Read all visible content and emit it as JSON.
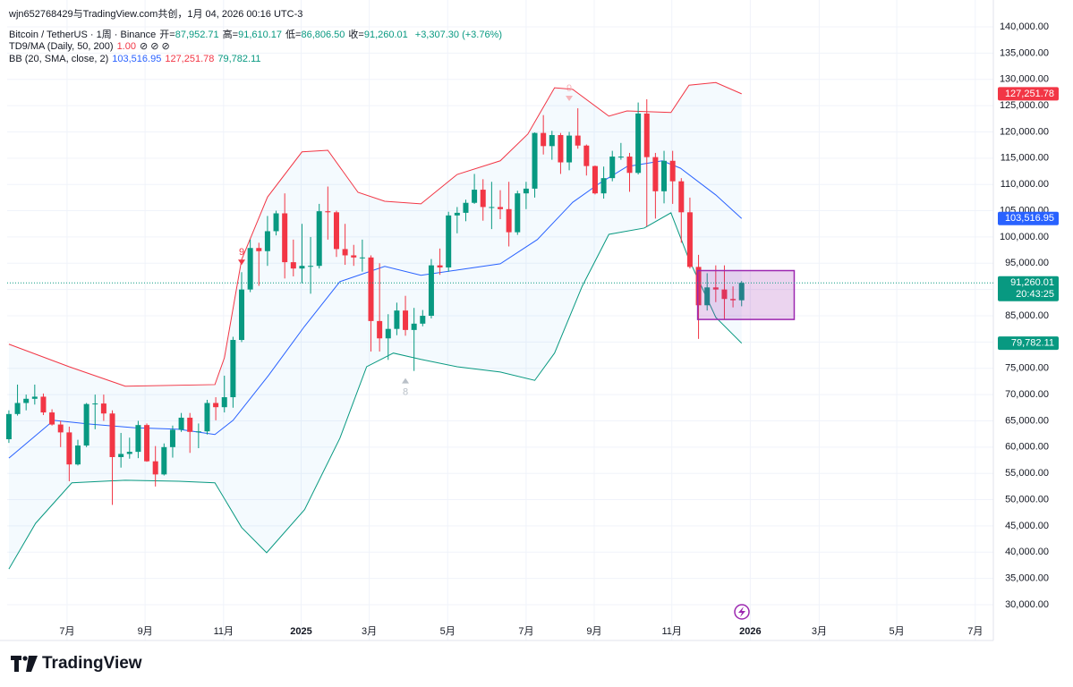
{
  "header": {
    "watermark": "wjn652768429与TradingView.com共创，1月 04, 2026 00:16 UTC-3",
    "symbol": "Bitcoin / TetherUS · 1周 · Binance",
    "ohlc": [
      {
        "label": "开=",
        "value": "87,952.71"
      },
      {
        "label": "高=",
        "value": "91,610.17"
      },
      {
        "label": "低=",
        "value": "86,806.50"
      },
      {
        "label": "收=",
        "value": "91,260.01"
      }
    ],
    "change": "+3,307.30 (+3.76%)",
    "indicators": [
      {
        "name": "TD9/MA (Daily, 50, 200)",
        "values": [
          {
            "text": "1.00",
            "color": "#f23645"
          },
          {
            "text": "⊘ ⊘ ⊘",
            "color": "#131722"
          }
        ]
      },
      {
        "name": "BB (20, SMA, close, 2)",
        "values": [
          {
            "text": "103,516.95",
            "color": "#2962ff"
          },
          {
            "text": "127,251.78",
            "color": "#f23645"
          },
          {
            "text": "79,782.11",
            "color": "#089981"
          }
        ]
      }
    ]
  },
  "footer": {
    "logo": "TradingView"
  },
  "chart_data": {
    "type": "candlestick",
    "up_color": "#089981",
    "down_color": "#f23645",
    "grid": true,
    "xlim": [
      -0.2,
      114.2
    ],
    "ylim": [
      23190,
      145110
    ],
    "xticks": [
      {
        "value": 6.75,
        "label": "7月"
      },
      {
        "value": 15.8,
        "label": "9月"
      },
      {
        "value": 24.9,
        "label": "11月"
      },
      {
        "value": 33.9,
        "label": "2025"
      },
      {
        "value": 41.8,
        "label": "3月"
      },
      {
        "value": 50.9,
        "label": "5月"
      },
      {
        "value": 60.0,
        "label": "7月"
      },
      {
        "value": 67.9,
        "label": "9月"
      },
      {
        "value": 76.9,
        "label": "11月"
      },
      {
        "value": 86.0,
        "label": "2026"
      },
      {
        "value": 94.0,
        "label": "3月"
      },
      {
        "value": 103.0,
        "label": "5月"
      },
      {
        "value": 112.1,
        "label": "7月"
      }
    ],
    "yticks": [
      {
        "value": 30000,
        "label": "30,000.00"
      },
      {
        "value": 35000,
        "label": "35,000.00"
      },
      {
        "value": 40000,
        "label": "40,000.00"
      },
      {
        "value": 45000,
        "label": "45,000.00"
      },
      {
        "value": 50000,
        "label": "50,000.00"
      },
      {
        "value": 55000,
        "label": "55,000.00"
      },
      {
        "value": 60000,
        "label": "60,000.00"
      },
      {
        "value": 65000,
        "label": "65,000.00"
      },
      {
        "value": 70000,
        "label": "70,000.00"
      },
      {
        "value": 75000,
        "label": "75,000.00"
      },
      {
        "value": 80000,
        "label": "80,000.00"
      },
      {
        "value": 85000,
        "label": "85,000.00"
      },
      {
        "value": 90000,
        "label": "90,000.00"
      },
      {
        "value": 95000,
        "label": "95,000.00"
      },
      {
        "value": 100000,
        "label": "100,000.00"
      },
      {
        "value": 105000,
        "label": "105,000.00"
      },
      {
        "value": 110000,
        "label": "110,000.00"
      },
      {
        "value": 115000,
        "label": "115,000.00"
      },
      {
        "value": 120000,
        "label": "120,000.00"
      },
      {
        "value": 125000,
        "label": "125,000.00"
      },
      {
        "value": 130000,
        "label": "130,000.00"
      },
      {
        "value": 135000,
        "label": "135,000.00"
      },
      {
        "value": 140000,
        "label": "140,000.00"
      }
    ],
    "x": [
      0,
      1,
      2,
      3,
      4,
      5,
      6,
      7,
      8,
      9,
      10,
      11,
      12,
      13,
      14,
      15,
      16,
      17,
      18,
      19,
      20,
      21,
      22,
      23,
      24,
      25,
      26,
      27,
      28,
      29,
      30,
      31,
      32,
      33,
      34,
      35,
      36,
      37,
      38,
      39,
      40,
      41,
      42,
      43,
      44,
      45,
      46,
      47,
      48,
      49,
      50,
      51,
      52,
      53,
      54,
      55,
      56,
      57,
      58,
      59,
      60,
      61,
      62,
      63,
      64,
      65,
      66,
      67,
      68,
      69,
      70,
      71,
      72,
      73,
      74,
      75,
      76,
      77,
      78,
      79,
      80,
      81,
      82,
      83,
      84,
      85
    ],
    "open": [
      61500,
      66300,
      68400,
      69200,
      69600,
      66600,
      64300,
      62800,
      56700,
      60300,
      68200,
      68300,
      66400,
      58100,
      58700,
      59100,
      64200,
      57300,
      54800,
      60000,
      63300,
      65600,
      62900,
      63000,
      68400,
      67600,
      69500,
      80400,
      90000,
      97900,
      97300,
      101100,
      104500,
      95200,
      94000,
      94500,
      94500,
      104900,
      104700,
      97700,
      96500,
      96100,
      96100,
      84000,
      80700,
      82500,
      86000,
      82300,
      83500,
      85000,
      94600,
      94200,
      104100,
      104600,
      106500,
      109000,
      105700,
      105700,
      105300,
      100900,
      108300,
      109200,
      119800,
      117300,
      119400,
      114200,
      119300,
      117400,
      113500,
      108300,
      111200,
      115300,
      115300,
      112200,
      123500,
      115200,
      108700,
      114500,
      110600,
      104700,
      94300,
      87000,
      90400,
      90000,
      88200,
      87952.71
    ],
    "high": [
      67000,
      71900,
      70000,
      71900,
      70200,
      67200,
      65000,
      63900,
      61400,
      68400,
      70000,
      70000,
      67000,
      62700,
      61800,
      65000,
      64500,
      60200,
      60700,
      64100,
      66500,
      66500,
      64500,
      69000,
      69500,
      73600,
      81000,
      93300,
      99500,
      98900,
      104000,
      105000,
      108300,
      99500,
      102500,
      100000,
      106300,
      109600,
      105000,
      102500,
      98500,
      99500,
      96500,
      95000,
      85300,
      87500,
      88800,
      86500,
      86100,
      95800,
      97800,
      104800,
      105700,
      107100,
      112000,
      111000,
      110500,
      108900,
      110500,
      108800,
      110500,
      119900,
      123200,
      120200,
      119800,
      120000,
      124500,
      117600,
      113600,
      113400,
      116400,
      117900,
      116000,
      125600,
      126200,
      116000,
      116400,
      116400,
      111200,
      107500,
      96600,
      93100,
      94600,
      94600,
      90600,
      91610.17
    ],
    "low": [
      60800,
      66000,
      67000,
      68100,
      66100,
      64100,
      60000,
      53500,
      56500,
      60000,
      63400,
      65000,
      49000,
      56100,
      57800,
      57900,
      57200,
      52500,
      54600,
      58000,
      62900,
      58900,
      59800,
      62400,
      65100,
      66600,
      67500,
      80000,
      89500,
      90700,
      94500,
      100300,
      92100,
      92500,
      91200,
      89200,
      94000,
      99500,
      96200,
      94700,
      94500,
      93400,
      78200,
      78200,
      76600,
      81300,
      81200,
      74500,
      83000,
      84500,
      92800,
      93400,
      100700,
      103000,
      106300,
      103100,
      101500,
      103400,
      98200,
      100400,
      105300,
      107500,
      115700,
      114700,
      112000,
      112700,
      116800,
      111700,
      108100,
      107300,
      110600,
      114700,
      108600,
      111900,
      102000,
      103500,
      106400,
      106300,
      98900,
      94000,
      80600,
      86000,
      87600,
      84400,
      86600,
      86806.5
    ],
    "close": [
      66300,
      68400,
      69200,
      69600,
      66600,
      64300,
      62800,
      56700,
      60300,
      68200,
      68300,
      66400,
      58100,
      58700,
      59100,
      64200,
      57300,
      54800,
      60000,
      63300,
      65600,
      62900,
      63000,
      68400,
      67600,
      69500,
      80400,
      90000,
      97900,
      97300,
      101100,
      104500,
      95200,
      94000,
      94500,
      94500,
      104900,
      104700,
      97700,
      96500,
      96100,
      96100,
      84000,
      80700,
      82500,
      86000,
      82300,
      83500,
      85000,
      94600,
      94200,
      104100,
      104600,
      106500,
      109000,
      105700,
      105700,
      105300,
      100900,
      108300,
      109200,
      119800,
      117300,
      119400,
      114200,
      119300,
      117400,
      113500,
      108300,
      111200,
      115300,
      115300,
      112200,
      123500,
      115200,
      108700,
      114500,
      110600,
      104700,
      94300,
      87000,
      90400,
      90000,
      88200,
      87952.71,
      91260.01
    ],
    "bands": [
      {
        "name": "upper",
        "color": "#f23645",
        "x": [
          0,
          7,
          13.5,
          23.9,
          25,
          27,
          30,
          34,
          37,
          40.5,
          43.6,
          47.8,
          52,
          57,
          60.2,
          63.3,
          65.4,
          69.6,
          71.7,
          76.8,
          78.9,
          82,
          85
        ],
        "values": [
          79600,
          75300,
          71600,
          71900,
          77000,
          95700,
          107600,
          116200,
          116500,
          108500,
          106800,
          106300,
          111900,
          114500,
          119600,
          128400,
          128100,
          123000,
          124000,
          123700,
          128900,
          129400,
          127251.78
        ]
      },
      {
        "name": "basis",
        "color": "#2962ff",
        "x": [
          0,
          5.2,
          9.3,
          14.5,
          19.7,
          23.9,
          26,
          30.1,
          34.3,
          38.4,
          43.6,
          47.8,
          52,
          57,
          61.3,
          65.4,
          68.5,
          71.7,
          75.8,
          77.9,
          82,
          85
        ],
        "values": [
          57900,
          65100,
          64400,
          63700,
          63400,
          62400,
          65100,
          73600,
          83000,
          91500,
          94400,
          92700,
          93700,
          94900,
          99500,
          106600,
          110200,
          113400,
          114500,
          113100,
          108000,
          103516.95
        ]
      },
      {
        "name": "lower",
        "color": "#089981",
        "x": [
          0,
          3.1,
          7.3,
          13.5,
          19.7,
          23.9,
          27,
          29.9,
          34.3,
          38.4,
          41.5,
          44.6,
          47.8,
          52,
          57,
          61,
          63.3,
          66.5,
          69.6,
          73.7,
          76.8,
          78.9,
          82,
          85
        ],
        "values": [
          36800,
          45500,
          53200,
          53700,
          53500,
          53200,
          44700,
          39900,
          48100,
          61700,
          75300,
          77900,
          76700,
          75300,
          74300,
          72700,
          77900,
          90600,
          100500,
          101700,
          104600,
          95700,
          84700,
          79782.11
        ]
      }
    ],
    "band_fill": "#2196f3",
    "price_tags": [
      {
        "label": "127,251.78",
        "value": 127251.78,
        "color": "#f23645"
      },
      {
        "label": "103,516.95",
        "value": 103516.95,
        "color": "#2962ff"
      },
      {
        "label": "91,260.01",
        "value": 91260.01,
        "color": "#089981",
        "countdown": "20:43:25"
      },
      {
        "label": "79,782.11",
        "value": 79782.11,
        "color": "#089981"
      }
    ],
    "td_markers": [
      {
        "x": 27,
        "label": "9",
        "position": "above",
        "value": 93300,
        "color": "#f23645"
      },
      {
        "x": 65,
        "label": "9",
        "position": "above",
        "value": 124500,
        "color": "#f5b4b9"
      },
      {
        "x": 46,
        "label": "8",
        "position": "below",
        "value": 74500,
        "color": "#b9c0c8"
      }
    ],
    "box": {
      "x": [
        79.9,
        91.1
      ],
      "y": [
        84300,
        93600
      ],
      "color": "#9c27b0"
    }
  }
}
